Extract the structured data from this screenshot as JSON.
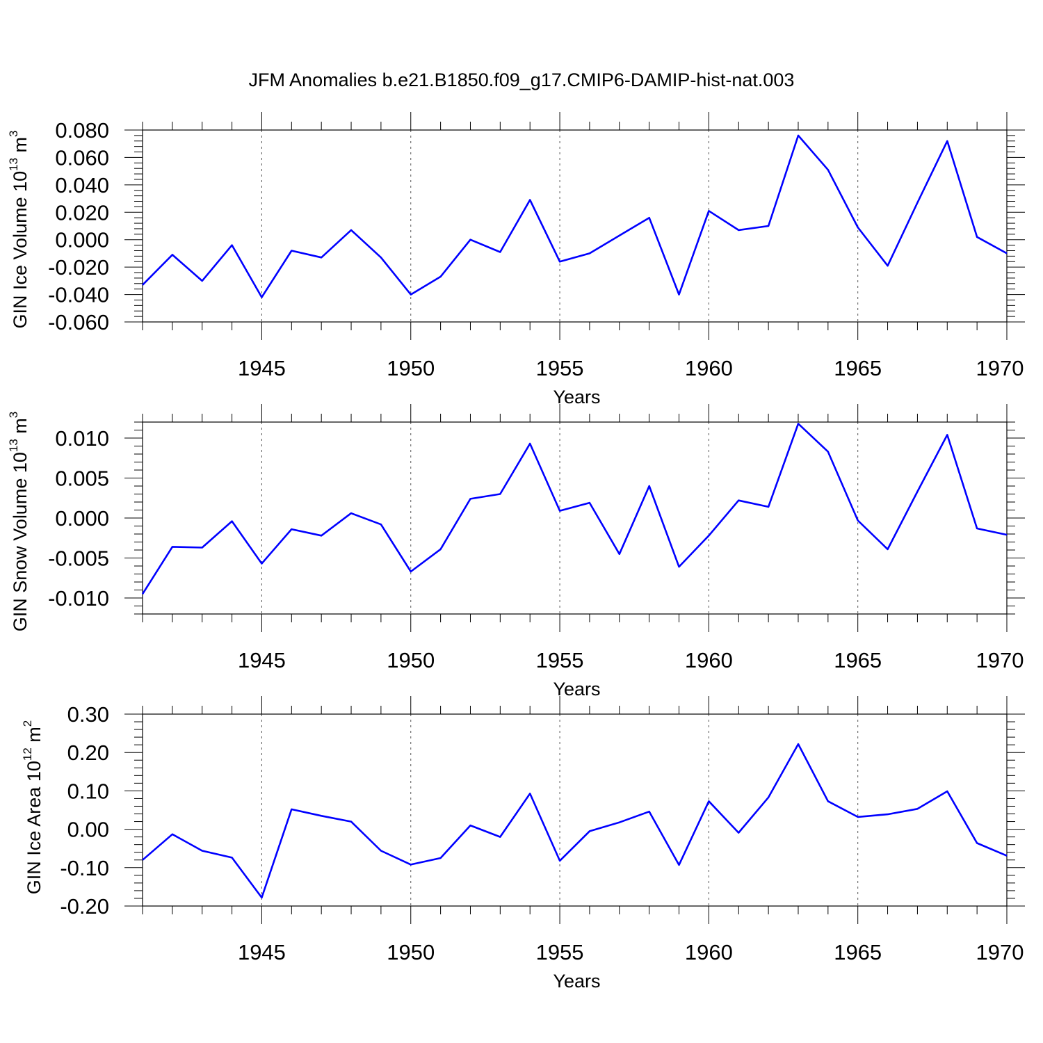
{
  "title": "JFM Anomalies b.e21.B1850.f09_g17.CMIP6-DAMIP-hist-nat.003",
  "colors": {
    "series": "#0000ff",
    "axis": "#000000",
    "grid": "#555555"
  },
  "chart_data": [
    {
      "type": "line",
      "ylabel": {
        "text": "GIN Ice Volume 10",
        "exp": "13",
        "unit": " m",
        "unit_exp": "3"
      },
      "xlabel": "Years",
      "xlim": [
        1941,
        1970
      ],
      "ylim": [
        -0.06,
        0.08
      ],
      "xticks": [
        "1945",
        "1950",
        "1955",
        "1960",
        "1965",
        "1970"
      ],
      "yticks": [
        "0.080",
        "0.060",
        "0.040",
        "0.020",
        "0.000",
        "-0.020",
        "-0.040",
        "-0.060"
      ],
      "ytick_values": [
        0.08,
        0.06,
        0.04,
        0.02,
        0.0,
        -0.02,
        -0.04,
        -0.06
      ],
      "yminor_step": 0.004,
      "grid": "dashed vertical at major x ticks",
      "x": [
        1941,
        1942,
        1943,
        1944,
        1945,
        1946,
        1947,
        1948,
        1949,
        1950,
        1951,
        1952,
        1953,
        1954,
        1955,
        1956,
        1957,
        1958,
        1959,
        1960,
        1961,
        1962,
        1963,
        1964,
        1965,
        1966,
        1967,
        1968,
        1969,
        1970
      ],
      "values": [
        -0.033,
        -0.011,
        -0.03,
        -0.004,
        -0.042,
        -0.008,
        -0.013,
        0.007,
        -0.013,
        -0.04,
        -0.027,
        0.0,
        -0.009,
        0.029,
        -0.016,
        -0.01,
        0.003,
        0.016,
        -0.04,
        0.021,
        0.007,
        0.01,
        0.076,
        0.051,
        0.009,
        -0.019,
        0.027,
        0.072,
        0.002,
        -0.01
      ]
    },
    {
      "type": "line",
      "ylabel": {
        "text": "GIN Snow Volume 10",
        "exp": "13",
        "unit": " m",
        "unit_exp": "3"
      },
      "xlabel": "Years",
      "xlim": [
        1941,
        1970
      ],
      "ylim": [
        -0.012,
        0.012
      ],
      "xticks": [
        "1945",
        "1950",
        "1955",
        "1960",
        "1965",
        "1970"
      ],
      "yticks": [
        "0.010",
        "0.005",
        "0.000",
        "-0.005",
        "-0.010"
      ],
      "ytick_values": [
        0.01,
        0.005,
        0.0,
        -0.005,
        -0.01
      ],
      "yminor_step": 0.001,
      "grid": "dashed vertical at major x ticks",
      "x": [
        1941,
        1942,
        1943,
        1944,
        1945,
        1946,
        1947,
        1948,
        1949,
        1950,
        1951,
        1952,
        1953,
        1954,
        1955,
        1956,
        1957,
        1958,
        1959,
        1960,
        1961,
        1962,
        1963,
        1964,
        1965,
        1966,
        1967,
        1968,
        1969,
        1970
      ],
      "values": [
        -0.0095,
        -0.0036,
        -0.0037,
        -0.0004,
        -0.0057,
        -0.0014,
        -0.0022,
        0.0006,
        -0.0008,
        -0.0067,
        -0.0039,
        0.0024,
        0.003,
        0.0093,
        0.0009,
        0.0019,
        -0.0045,
        0.004,
        -0.0061,
        -0.0022,
        0.0022,
        0.0014,
        0.0118,
        0.0083,
        -0.0003,
        -0.0039,
        0.0033,
        0.0104,
        -0.0013,
        -0.0021
      ]
    },
    {
      "type": "line",
      "ylabel": {
        "text": "GIN Ice Area 10",
        "exp": "12",
        "unit": " m",
        "unit_exp": "2"
      },
      "xlabel": "Years",
      "xlim": [
        1941,
        1970
      ],
      "ylim": [
        -0.2,
        0.3
      ],
      "xticks": [
        "1945",
        "1950",
        "1955",
        "1960",
        "1965",
        "1970"
      ],
      "yticks": [
        "0.30",
        "0.20",
        "0.10",
        "0.00",
        "-0.10",
        "-0.20"
      ],
      "ytick_values": [
        0.3,
        0.2,
        0.1,
        0.0,
        -0.1,
        -0.2
      ],
      "yminor_step": 0.02,
      "grid": "dashed vertical at major x ticks",
      "x": [
        1941,
        1942,
        1943,
        1944,
        1945,
        1946,
        1947,
        1948,
        1949,
        1950,
        1951,
        1952,
        1953,
        1954,
        1955,
        1956,
        1957,
        1958,
        1959,
        1960,
        1961,
        1962,
        1963,
        1964,
        1965,
        1966,
        1967,
        1968,
        1969,
        1970
      ],
      "values": [
        -0.08,
        -0.013,
        -0.056,
        -0.074,
        -0.178,
        0.052,
        0.035,
        0.02,
        -0.056,
        -0.092,
        -0.075,
        0.01,
        -0.02,
        0.093,
        -0.082,
        -0.005,
        0.018,
        0.046,
        -0.093,
        0.073,
        -0.009,
        0.083,
        0.222,
        0.073,
        0.032,
        0.039,
        0.053,
        0.099,
        -0.036,
        -0.069
      ]
    }
  ]
}
